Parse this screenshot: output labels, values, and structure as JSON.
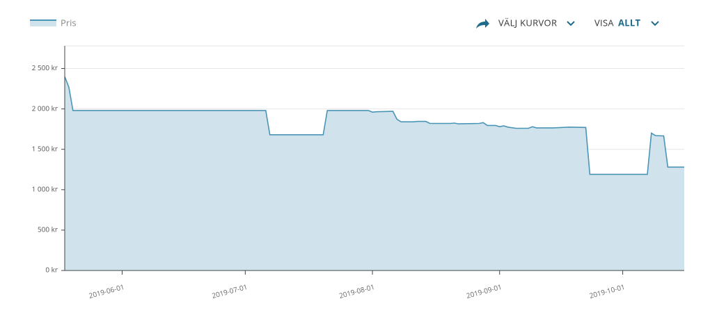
{
  "chart_data": {
    "type": "area",
    "legend": "Pris",
    "controls": {
      "curves": "VÄLJ KURVOR",
      "show": "VISA",
      "show_value": "ALLT"
    },
    "series": [
      {
        "name": "Pris",
        "color": "#4a95b5",
        "fill": "#d0e2ec",
        "x": [
          "2019-05-18",
          "2019-05-19",
          "2019-05-20",
          "2019-07-06",
          "2019-07-07",
          "2019-07-20",
          "2019-07-21",
          "2019-07-31",
          "2019-08-01",
          "2019-08-02",
          "2019-08-06",
          "2019-08-07",
          "2019-08-08",
          "2019-08-11",
          "2019-08-12",
          "2019-08-14",
          "2019-08-15",
          "2019-08-20",
          "2019-08-21",
          "2019-08-22",
          "2019-08-27",
          "2019-08-28",
          "2019-08-29",
          "2019-08-31",
          "2019-09-01",
          "2019-09-02",
          "2019-09-03",
          "2019-09-05",
          "2019-09-08",
          "2019-09-09",
          "2019-09-10",
          "2019-09-14",
          "2019-09-18",
          "2019-09-22",
          "2019-09-23",
          "2019-10-07",
          "2019-10-08",
          "2019-10-09",
          "2019-10-11",
          "2019-10-12",
          "2019-10-16"
        ],
        "values": [
          2400,
          2270,
          1980,
          1980,
          1680,
          1680,
          1980,
          1980,
          1960,
          1965,
          1970,
          1870,
          1840,
          1840,
          1845,
          1845,
          1820,
          1820,
          1825,
          1815,
          1820,
          1830,
          1795,
          1795,
          1780,
          1790,
          1775,
          1760,
          1760,
          1780,
          1765,
          1765,
          1775,
          1770,
          1190,
          1190,
          1700,
          1670,
          1665,
          1280,
          1280
        ]
      }
    ],
    "xlim": [
      "2019-05-18",
      "2019-10-16"
    ],
    "xticks": [
      "2019-06-01",
      "2019-07-01",
      "2019-08-01",
      "2019-09-01",
      "2019-10-01"
    ],
    "ylim": [
      0,
      2780
    ],
    "yticks": [
      {
        "value": 0,
        "label": "0 kr"
      },
      {
        "value": 500,
        "label": "500 kr"
      },
      {
        "value": 1000,
        "label": "1 000 kr"
      },
      {
        "value": 1500,
        "label": "1 500 kr"
      },
      {
        "value": 2000,
        "label": "2 000 kr"
      },
      {
        "value": 2500,
        "label": "2 500 kr"
      }
    ],
    "grid": true
  }
}
